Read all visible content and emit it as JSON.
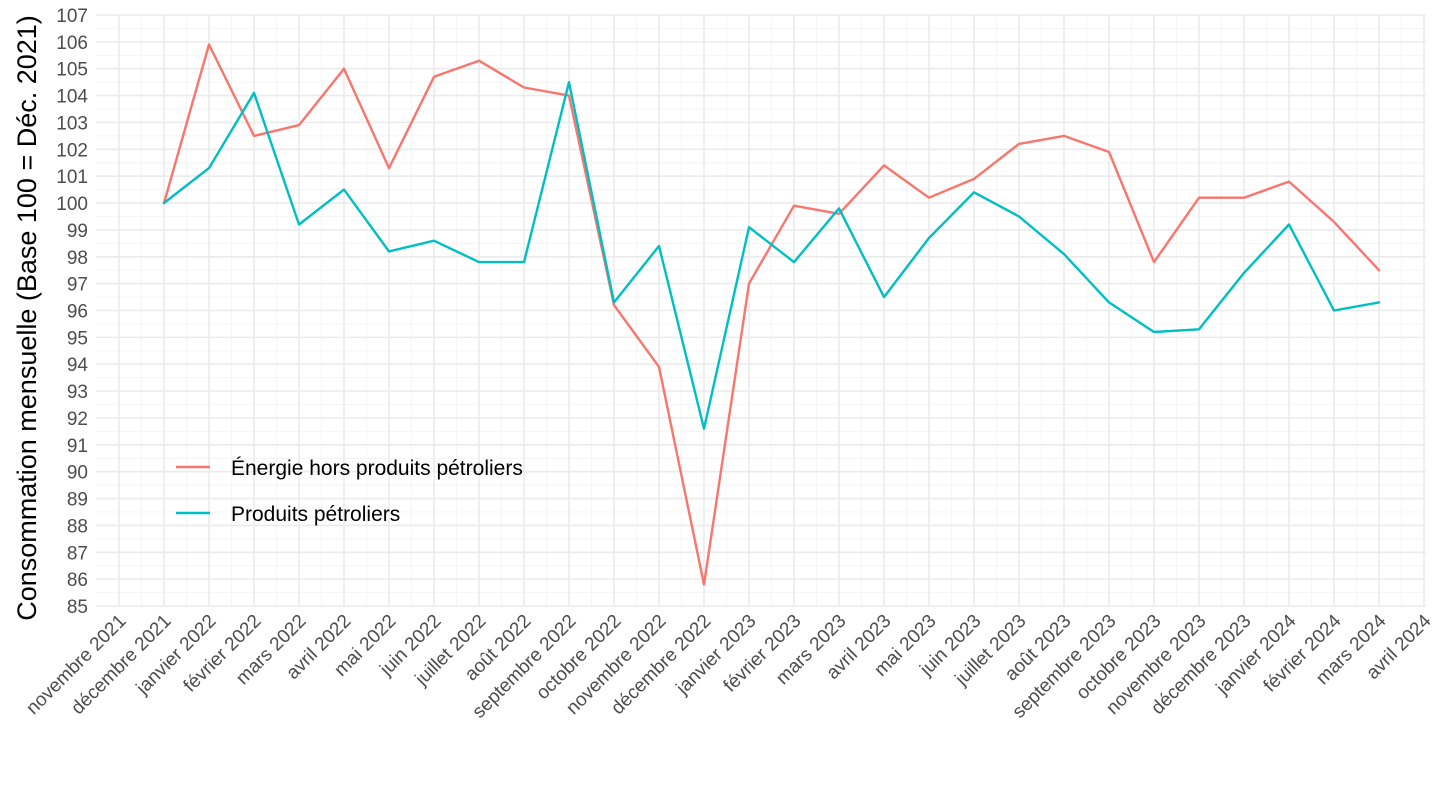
{
  "chart_data": {
    "type": "line",
    "title": "",
    "xlabel": "",
    "ylabel": "Consommation mensuelle (Base 100 = Déc. 2021)",
    "ylim": [
      85,
      107
    ],
    "yticks": [
      85,
      86,
      87,
      88,
      89,
      90,
      91,
      92,
      93,
      94,
      95,
      96,
      97,
      98,
      99,
      100,
      101,
      102,
      103,
      104,
      105,
      106,
      107
    ],
    "x_tick_labels": [
      "novembre 2021",
      "décembre 2021",
      "janvier 2022",
      "février 2022",
      "mars 2022",
      "avril 2022",
      "mai 2022",
      "juin 2022",
      "juillet 2022",
      "août 2022",
      "septembre 2022",
      "octobre 2022",
      "novembre 2022",
      "décembre 2022",
      "janvier 2023",
      "février 2023",
      "mars 2023",
      "avril 2023",
      "mai 2023",
      "juin 2023",
      "juillet 2023",
      "août 2023",
      "septembre 2023",
      "octobre 2023",
      "novembre 2023",
      "décembre 2023",
      "janvier 2024",
      "février 2024",
      "mars 2024",
      "avril 2024"
    ],
    "x": [
      "décembre 2021",
      "janvier 2022",
      "février 2022",
      "mars 2022",
      "avril 2022",
      "mai 2022",
      "juin 2022",
      "juillet 2022",
      "août 2022",
      "septembre 2022",
      "octobre 2022",
      "novembre 2022",
      "décembre 2022",
      "janvier 2023",
      "février 2023",
      "mars 2023",
      "avril 2023",
      "mai 2023",
      "juin 2023",
      "juillet 2023",
      "août 2023",
      "septembre 2023",
      "octobre 2023",
      "novembre 2023",
      "décembre 2023",
      "janvier 2024",
      "février 2024",
      "mars 2024"
    ],
    "grid": true,
    "legend_position": "inside-bottom-left",
    "series": [
      {
        "name": "Énergie hors produits pétroliers",
        "color": "#F8766D",
        "values": [
          100,
          105.9,
          102.5,
          102.9,
          105.0,
          101.3,
          104.7,
          105.3,
          104.3,
          104.0,
          96.2,
          93.9,
          85.8,
          97.0,
          99.9,
          99.6,
          101.4,
          100.2,
          100.9,
          102.2,
          102.5,
          101.9,
          97.8,
          100.2,
          100.2,
          100.8,
          99.3,
          97.5
        ]
      },
      {
        "name": "Produits pétroliers",
        "color": "#00BFC4",
        "values": [
          100,
          101.3,
          104.1,
          99.2,
          100.5,
          98.2,
          98.6,
          97.8,
          97.8,
          104.5,
          96.3,
          98.4,
          91.6,
          99.1,
          97.8,
          99.8,
          96.5,
          98.7,
          100.4,
          99.5,
          98.1,
          96.3,
          95.2,
          95.3,
          97.4,
          99.2,
          96.0,
          96.3
        ]
      }
    ]
  }
}
